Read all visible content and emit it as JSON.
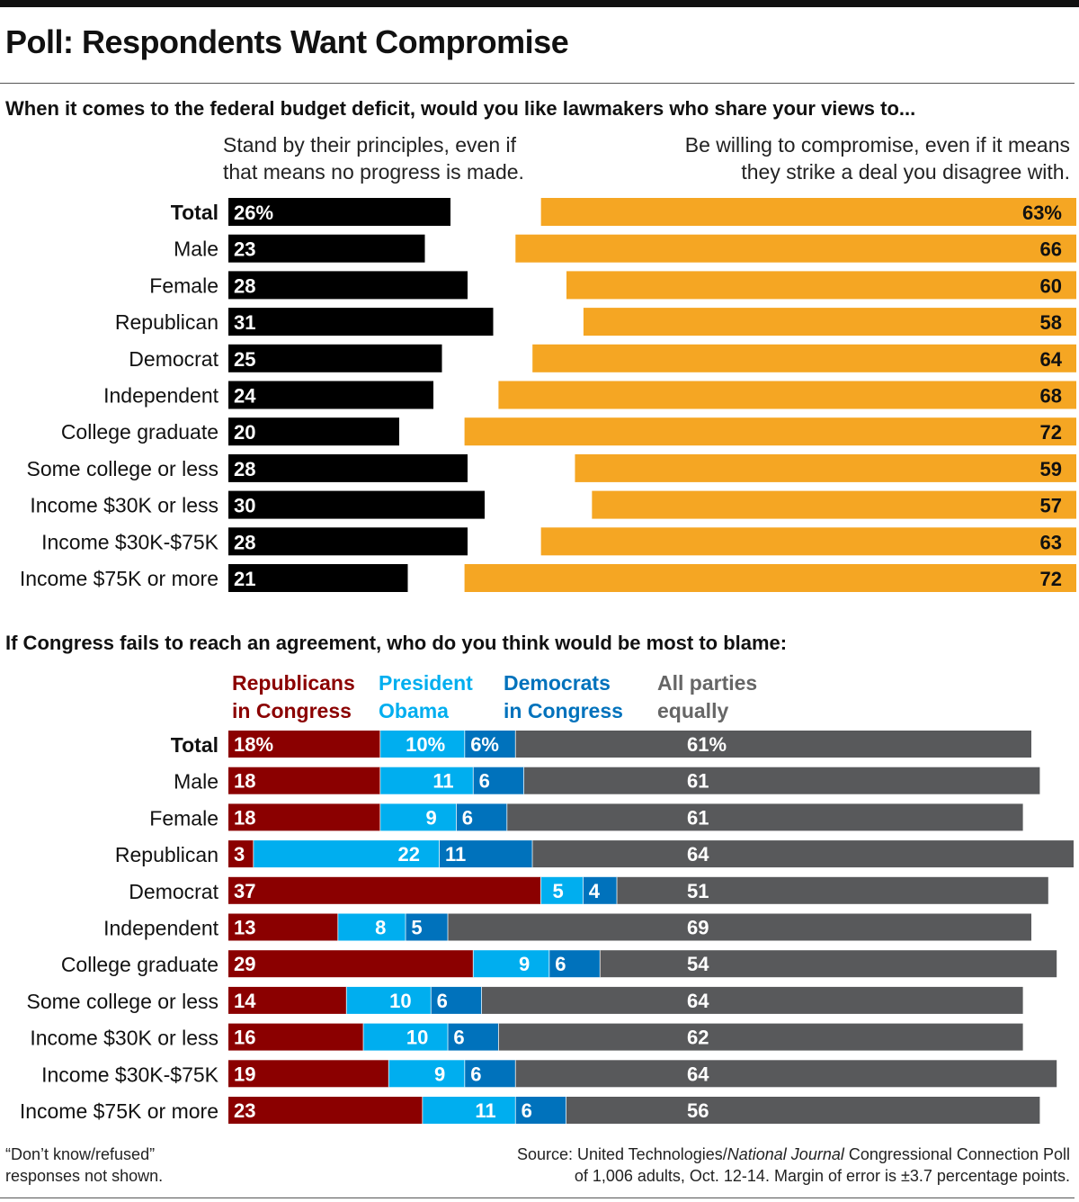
{
  "title": "Poll: Respondents Want Compromise",
  "chart_data": [
    {
      "type": "bar",
      "question": "When it comes to the federal budget deficit, would you like lawmakers who share your views to...",
      "categories": [
        "Total",
        "Male",
        "Female",
        "Republican",
        "Democrat",
        "Independent",
        "College graduate",
        "Some college or less",
        "Income $30K or less",
        "Income $30K-$75K",
        "Income $75K or more"
      ],
      "series": [
        {
          "name": "Stand by their principles, even if that means no progress is made.",
          "values": [
            26,
            23,
            28,
            31,
            25,
            24,
            20,
            28,
            30,
            28,
            21
          ],
          "labels": [
            "26%",
            "23",
            "28",
            "31",
            "25",
            "24",
            "20",
            "28",
            "30",
            "28",
            "21"
          ],
          "color": "#000000"
        },
        {
          "name": "Be willing to compromise, even if it means they strike a deal you disagree with.",
          "values": [
            63,
            66,
            60,
            58,
            64,
            68,
            72,
            59,
            57,
            63,
            72
          ],
          "labels": [
            "63%",
            "66",
            "60",
            "58",
            "64",
            "68",
            "72",
            "59",
            "57",
            "63",
            "72"
          ],
          "color": "#F5A623"
        }
      ]
    },
    {
      "type": "bar",
      "stacked": true,
      "question": "If Congress fails to reach an agreement, who do you think would be most to blame:",
      "categories": [
        "Total",
        "Male",
        "Female",
        "Republican",
        "Democrat",
        "Independent",
        "College graduate",
        "Some college or less",
        "Income $30K or less",
        "Income $30K-$75K",
        "Income $75K or more"
      ],
      "series": [
        {
          "name": "Republicans in Congress",
          "values": [
            18,
            18,
            18,
            3,
            37,
            13,
            29,
            14,
            16,
            19,
            23
          ],
          "labels": [
            "18%",
            "18",
            "18",
            "3",
            "37",
            "13",
            "29",
            "14",
            "16",
            "19",
            "23"
          ],
          "color": "#8B0000"
        },
        {
          "name": "President Obama",
          "values": [
            10,
            11,
            9,
            22,
            5,
            8,
            9,
            10,
            10,
            9,
            11
          ],
          "labels": [
            "10%",
            "11",
            "9",
            "22",
            "5",
            "8",
            "9",
            "10",
            "10",
            "9",
            "11"
          ],
          "color": "#00AEEF"
        },
        {
          "name": "Democrats in Congress",
          "values": [
            6,
            6,
            6,
            11,
            4,
            5,
            6,
            6,
            6,
            6,
            6
          ],
          "labels": [
            "6%",
            "6",
            "6",
            "11",
            "4",
            "5",
            "6",
            "6",
            "6",
            "6",
            "6"
          ],
          "color": "#0072BC"
        },
        {
          "name": "All parties equally",
          "values": [
            61,
            61,
            61,
            64,
            51,
            69,
            54,
            64,
            62,
            64,
            56
          ],
          "labels": [
            "61%",
            "61",
            "61",
            "64",
            "51",
            "69",
            "54",
            "64",
            "62",
            "64",
            "56"
          ],
          "color": "#58595B"
        }
      ]
    }
  ],
  "legend1": {
    "left": [
      "Stand by their principles, even if",
      "that means no progress is made."
    ],
    "right": [
      "Be willing to compromise, even if it means",
      "they strike a deal you disagree with."
    ]
  },
  "legend2": {
    "rep": [
      "Republicans",
      "in Congress"
    ],
    "obama": [
      "President",
      "Obama"
    ],
    "dem": [
      "Democrats",
      "in Congress"
    ],
    "all": [
      "All parties",
      "equally"
    ]
  },
  "footer": {
    "note": [
      "“Don’t know/refused”",
      "responses not shown."
    ],
    "source_prefix": "Source: United Technologies/",
    "source_italic": "National Journal",
    "source_suffix": " Congressional Connection Poll",
    "source_line2": "of 1,006 adults, Oct. 12-14. Margin of error is ±3.7 percentage points."
  }
}
